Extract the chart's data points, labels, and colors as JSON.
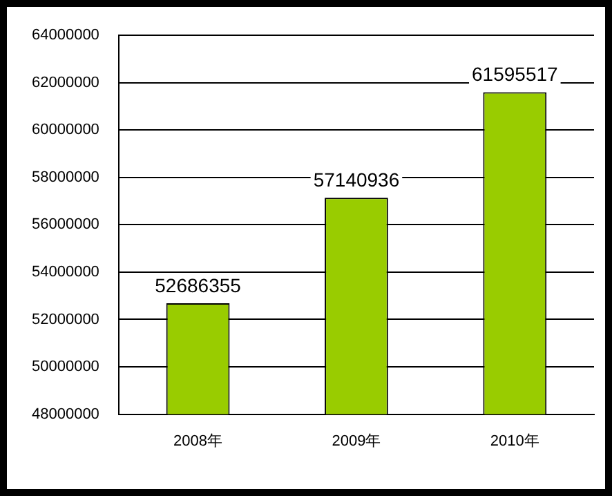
{
  "chart_data": {
    "type": "bar",
    "categories": [
      "2008年",
      "2009年",
      "2010年"
    ],
    "values": [
      52686355,
      57140936,
      61595517
    ],
    "color": "#99cc00",
    "ylim": [
      48000000,
      64000000
    ],
    "yticks": [
      48000000,
      50000000,
      52000000,
      54000000,
      56000000,
      58000000,
      60000000,
      62000000,
      64000000
    ],
    "grid": "y",
    "legend": false,
    "data_labels": true
  }
}
